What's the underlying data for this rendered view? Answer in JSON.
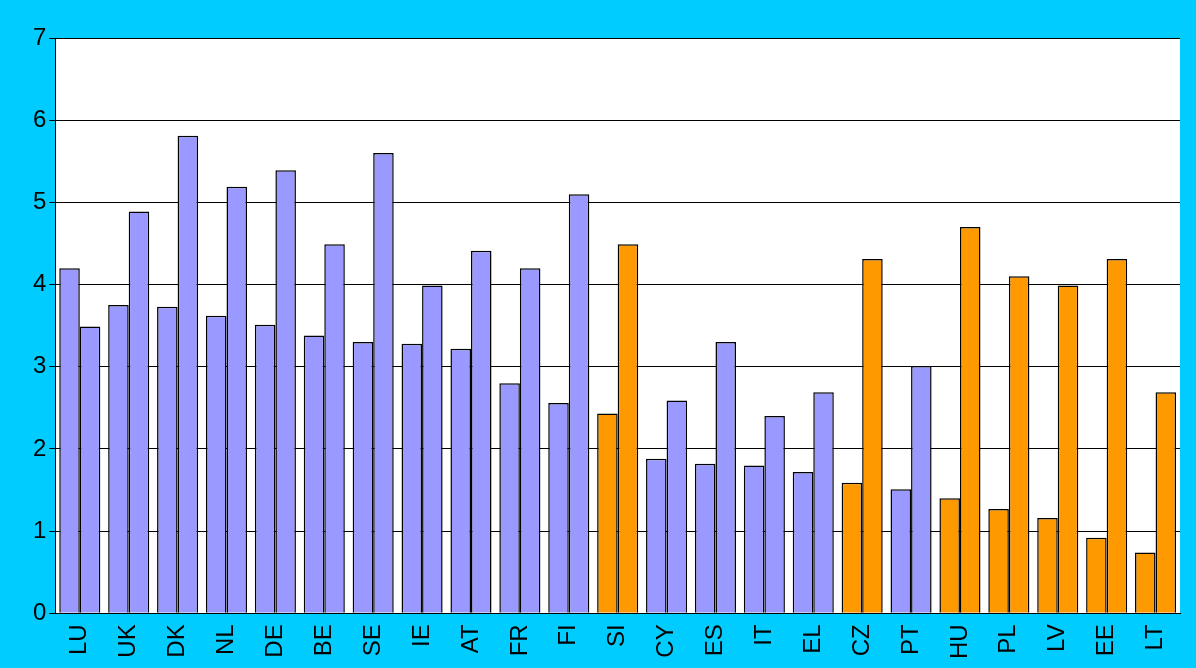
{
  "chart_data": {
    "type": "bar",
    "categories": [
      "LU",
      "UK",
      "DK",
      "NL",
      "DE",
      "BE",
      "SE",
      "IE",
      "AT",
      "FR",
      "FI",
      "SI",
      "CY",
      "ES",
      "IT",
      "EL",
      "CZ",
      "PT",
      "HU",
      "PL",
      "LV",
      "EE",
      "LT"
    ],
    "series": [
      {
        "colors": [
          "#9999ff",
          "#9999ff",
          "#9999ff",
          "#9999ff",
          "#9999ff",
          "#9999ff",
          "#9999ff",
          "#9999ff",
          "#9999ff",
          "#9999ff",
          "#9999ff",
          "#ff9900",
          "#9999ff",
          "#9999ff",
          "#9999ff",
          "#9999ff",
          "#ff9900",
          "#9999ff",
          "#ff9900",
          "#ff9900",
          "#ff9900",
          "#ff9900",
          "#ff9900"
        ],
        "values": [
          4.2,
          3.75,
          3.73,
          3.62,
          3.51,
          3.38,
          3.3,
          3.28,
          3.22,
          2.8,
          2.56,
          2.43,
          1.88,
          1.82,
          1.8,
          1.72,
          1.59,
          1.51,
          1.4,
          1.27,
          1.16,
          0.92,
          0.74
        ]
      },
      {
        "colors": [
          "#9999ff",
          "#9999ff",
          "#9999ff",
          "#9999ff",
          "#9999ff",
          "#9999ff",
          "#9999ff",
          "#9999ff",
          "#9999ff",
          "#9999ff",
          "#9999ff",
          "#ff9900",
          "#9999ff",
          "#9999ff",
          "#9999ff",
          "#9999ff",
          "#ff9900",
          "#9999ff",
          "#ff9900",
          "#ff9900",
          "#ff9900",
          "#ff9900",
          "#ff9900"
        ],
        "values": [
          3.49,
          4.89,
          5.81,
          5.19,
          5.39,
          4.49,
          5.6,
          3.99,
          4.41,
          4.2,
          5.1,
          4.49,
          2.59,
          3.3,
          2.4,
          2.69,
          4.31,
          3.01,
          4.7,
          4.1,
          3.99,
          4.31,
          2.69
        ]
      }
    ],
    "ylim": [
      0,
      7
    ],
    "yticks": [
      0,
      1,
      2,
      3,
      4,
      5,
      6,
      7
    ],
    "grid": "y"
  }
}
